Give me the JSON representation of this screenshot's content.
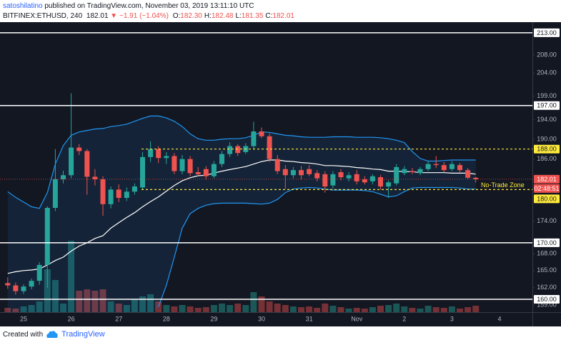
{
  "header": {
    "author": "satoshilatino",
    "published": "published on TradingView.com, November 03, 2019 13:11:10 UTC",
    "symbol": "BITFINEX:ETHUSD, 240",
    "price": "182.01",
    "arrow": "▼",
    "change": "−1.91 (−1.04%)",
    "ohlc": [
      {
        "label": "O:",
        "value": "182.30"
      },
      {
        "label": "H:",
        "value": "182.48"
      },
      {
        "label": "L:",
        "value": "181.35"
      },
      {
        "label": "C:",
        "value": "182.01"
      }
    ]
  },
  "chart_data": {
    "type": "candlestick",
    "log_scale": true,
    "ylim": [
      157.8,
      214.3
    ],
    "yticks": [
      {
        "value": 208,
        "label": "208.00"
      },
      {
        "value": 204,
        "label": "204.00"
      },
      {
        "value": 199,
        "label": "199.00"
      },
      {
        "value": 194,
        "label": "194.00"
      },
      {
        "value": 190,
        "label": "190.00"
      },
      {
        "value": 186,
        "label": "186.00"
      },
      {
        "value": 174,
        "label": "174.00"
      },
      {
        "value": 168,
        "label": "168.00"
      },
      {
        "value": 165,
        "label": "165.00"
      },
      {
        "value": 162,
        "label": "162.00"
      },
      {
        "value": 159,
        "label": "159.00"
      }
    ],
    "xticks": [
      "25",
      "26",
      "27",
      "28",
      "29",
      "30",
      "31",
      "Nov",
      "2",
      "3",
      "4"
    ],
    "up_color": "#26a69a",
    "down_color": "#ef5350",
    "open": [
      162.8,
      162.4,
      161.4,
      162.2,
      163.2,
      166.0,
      176.5,
      182.0,
      182.8,
      188.3,
      187.6,
      182.5,
      182.0,
      177.2,
      180.0,
      178.4,
      179.6,
      180.4,
      186.4,
      188.0,
      186.2,
      186.6,
      183.6,
      186.0,
      183.4,
      184.0,
      182.6,
      185.0,
      187.0,
      188.6,
      187.4,
      188.6,
      191.6,
      190.6,
      186.0,
      184.0,
      182.8,
      183.8,
      184.0,
      183.2,
      183.0,
      180.8,
      183.4,
      182.2,
      183.0,
      182.0,
      181.6,
      182.4,
      180.6,
      181.2,
      183.2,
      183.6,
      183.2,
      184.0,
      185.0,
      184.8,
      184.0,
      184.8,
      183.8,
      182.3
    ],
    "high": [
      163.8,
      162.9,
      162.6,
      163.6,
      166.5,
      176.8,
      188.0,
      183.7,
      199.6,
      189.0,
      188.0,
      184.0,
      182.6,
      180.6,
      181.0,
      180.4,
      181.2,
      187.4,
      189.6,
      188.6,
      187.4,
      187.2,
      186.8,
      186.6,
      184.4,
      184.6,
      185.6,
      187.6,
      189.4,
      189.0,
      189.2,
      193.6,
      192.4,
      191.2,
      186.8,
      184.8,
      184.4,
      184.6,
      184.8,
      183.8,
      183.6,
      183.6,
      184.0,
      183.4,
      183.8,
      182.6,
      183.0,
      182.8,
      181.8,
      185.0,
      184.6,
      184.2,
      184.4,
      185.6,
      186.6,
      185.4,
      185.6,
      185.2,
      184.2,
      182.48
    ],
    "low": [
      161.8,
      160.8,
      160.9,
      161.7,
      162.5,
      162.0,
      175.9,
      181.2,
      182.2,
      186.8,
      179.0,
      180.8,
      175.0,
      176.4,
      177.6,
      177.8,
      179.0,
      180.0,
      185.4,
      185.2,
      185.0,
      183.0,
      183.0,
      182.6,
      182.6,
      182.0,
      182.2,
      184.4,
      186.4,
      186.6,
      187.0,
      188.0,
      190.2,
      185.4,
      183.0,
      180.2,
      182.2,
      182.0,
      182.6,
      181.6,
      179.4,
      180.2,
      181.8,
      181.6,
      181.0,
      181.0,
      181.0,
      180.0,
      178.4,
      180.8,
      182.8,
      183.0,
      182.8,
      183.6,
      184.2,
      183.4,
      183.6,
      183.4,
      182.0,
      181.35
    ],
    "close": [
      162.4,
      161.4,
      162.2,
      163.2,
      166.0,
      176.5,
      182.0,
      182.8,
      188.3,
      187.6,
      182.5,
      182.0,
      177.2,
      180.0,
      178.4,
      179.6,
      180.6,
      186.4,
      188.0,
      186.2,
      186.6,
      183.6,
      186.0,
      183.2,
      183.0,
      182.6,
      185.0,
      187.0,
      188.6,
      187.2,
      188.6,
      191.6,
      190.6,
      186.0,
      183.6,
      182.8,
      183.8,
      182.8,
      183.0,
      182.2,
      180.6,
      183.0,
      182.4,
      182.8,
      181.6,
      181.4,
      182.6,
      180.6,
      181.4,
      184.4,
      184.0,
      183.4,
      184.0,
      185.0,
      184.8,
      183.8,
      185.0,
      183.8,
      182.3,
      182.01
    ],
    "volume": [
      6,
      5,
      8,
      10,
      15,
      60,
      45,
      12,
      100,
      30,
      32,
      30,
      32,
      15,
      12,
      10,
      18,
      22,
      25,
      15,
      10,
      8,
      10,
      8,
      6,
      7,
      10,
      12,
      10,
      12,
      10,
      28,
      22,
      15,
      12,
      10,
      8,
      7,
      8,
      6,
      12,
      9,
      7,
      5,
      6,
      5,
      7,
      9,
      10,
      12,
      8,
      6,
      5,
      9,
      7,
      6,
      8,
      5,
      7,
      9
    ],
    "bands": {
      "upper_color": "#2196f3",
      "middle_color": "#ffffff",
      "upper": [
        179.6,
        178.5,
        177.6,
        176.7,
        176.4,
        179.4,
        185.0,
        188.7,
        190.8,
        191.5,
        191.8,
        192.1,
        192.2,
        192.6,
        192.8,
        193.1,
        193.7,
        194.3,
        194.8,
        194.8,
        194.4,
        193.7,
        192.6,
        191.1,
        190.1,
        189.8,
        189.8,
        190.0,
        190.1,
        190.1,
        190.3,
        190.8,
        191.5,
        191.4,
        191.1,
        190.8,
        190.7,
        190.5,
        190.4,
        190.4,
        190.4,
        190.5,
        190.5,
        190.5,
        190.4,
        190.4,
        190.4,
        190.3,
        190.1,
        189.8,
        189.3,
        187.5,
        186.1,
        185.6,
        185.6,
        185.7,
        185.8,
        185.8,
        185.8,
        185.8
      ],
      "middle": [
        164.5,
        164.8,
        165.0,
        165.1,
        165.3,
        166.0,
        166.8,
        167.4,
        168.5,
        169.4,
        170.0,
        170.8,
        171.3,
        172.7,
        173.7,
        174.7,
        175.6,
        176.7,
        177.7,
        178.6,
        179.7,
        180.8,
        181.7,
        182.3,
        182.7,
        182.8,
        183.2,
        183.6,
        183.9,
        184.2,
        184.5,
        185.0,
        185.5,
        185.8,
        185.8,
        185.6,
        185.5,
        185.3,
        185.2,
        185.0,
        184.7,
        184.7,
        184.6,
        184.5,
        184.3,
        184.2,
        184.0,
        183.9,
        183.6,
        183.6,
        183.5,
        183.5,
        183.3,
        183.3,
        183.3,
        183.3,
        183.2,
        183.2,
        183.2,
        183.0
      ],
      "lower": [
        null,
        null,
        null,
        null,
        null,
        null,
        null,
        null,
        null,
        null,
        null,
        null,
        null,
        null,
        null,
        null,
        null,
        null,
        null,
        158.7,
        162.4,
        167.4,
        172.7,
        175.4,
        176.4,
        177.0,
        177.3,
        177.4,
        177.4,
        177.4,
        177.4,
        177.3,
        177.2,
        177.4,
        178.1,
        179.4,
        180.1,
        180.3,
        180.4,
        180.3,
        180.1,
        179.9,
        179.9,
        179.9,
        179.9,
        179.8,
        179.6,
        179.1,
        178.6,
        178.8,
        179.6,
        180.3,
        180.4,
        180.4,
        180.4,
        180.4,
        180.4,
        180.3,
        180.1,
        180.1
      ]
    },
    "levels": [
      {
        "value": 213,
        "label": "213.00"
      },
      {
        "value": 197,
        "label": "197.00"
      },
      {
        "value": 170,
        "label": "170.00"
      },
      {
        "value": 160,
        "label": "160.00"
      }
    ],
    "level_color": "#ffffff",
    "zone": {
      "lines": [
        {
          "value": 188,
          "label": "188.00"
        },
        {
          "value": 180,
          "label": "180.00"
        }
      ],
      "label": "No-Trade Zone",
      "color": "#ffeb3b"
    },
    "last_price": {
      "value": 182.01,
      "label": "182.01",
      "countdown": "02:48:51",
      "color": "#ef5350"
    }
  },
  "footer": {
    "text": "Created with",
    "brand": "TradingView"
  }
}
